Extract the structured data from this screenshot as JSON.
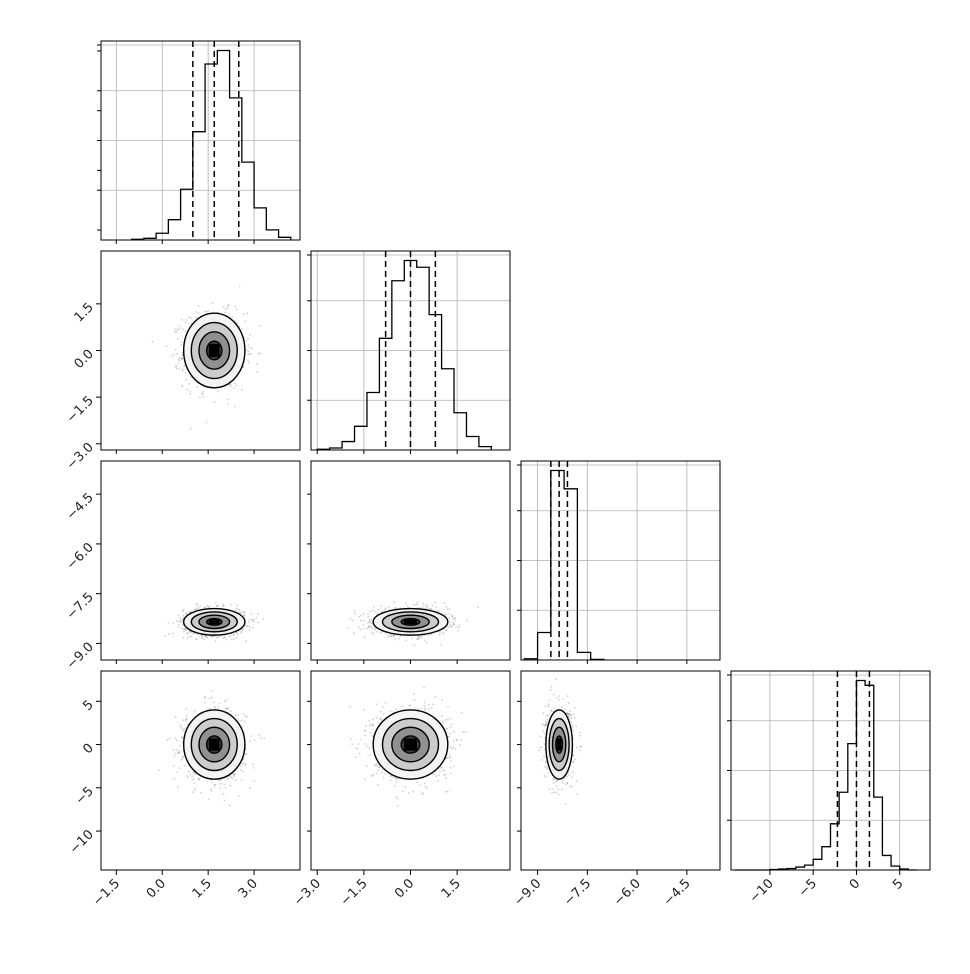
{
  "chart_data": {
    "type": "corner",
    "style": {
      "hist_color": "#000000",
      "point_color": "#7a7a7a",
      "contour_color": "#000000",
      "grid_color": "#b0b0b0",
      "grid": true
    },
    "variables": [
      {
        "range": [
          -2.0,
          4.5
        ],
        "ticks": [
          "-1.5",
          "0.0",
          "1.5",
          "3.0"
        ],
        "tick_values": [
          -1.5,
          0.0,
          1.5,
          3.0
        ],
        "center": 1.7,
        "sd": 0.5
      },
      {
        "range": [
          -3.2,
          3.2
        ],
        "ticks": [
          "-3.0",
          "-1.5",
          "0.0",
          "1.5"
        ],
        "tick_values": [
          -3.0,
          -1.5,
          0.0,
          1.5
        ],
        "center": 0.0,
        "sd": 0.6
      },
      {
        "range": [
          -9.5,
          -3.5
        ],
        "ticks": [
          "-9.0",
          "-7.5",
          "-6.0",
          "-4.5"
        ],
        "tick_values": [
          -9.0,
          -7.5,
          -6.0,
          -4.5
        ],
        "center": -8.35,
        "sd": 0.2
      },
      {
        "range": [
          -14.5,
          8.5
        ],
        "ticks": [
          "-10",
          "-5",
          "0",
          "5"
        ],
        "tick_values": [
          -10,
          -5,
          0,
          5
        ],
        "center": 0.0,
        "sd": 2.0
      }
    ],
    "histograms": [
      {
        "var": 0,
        "bins": [
          -1.0,
          -0.6,
          -0.2,
          0.2,
          0.6,
          1.0,
          1.4,
          1.8,
          2.2,
          2.6,
          3.0,
          3.4,
          3.8,
          4.2
        ],
        "counts": [
          2,
          5,
          20,
          60,
          150,
          320,
          520,
          560,
          420,
          230,
          95,
          30,
          8,
          2
        ],
        "quantiles": [
          1.0,
          1.7,
          2.5
        ]
      },
      {
        "var": 1,
        "bins": [
          -3.0,
          -2.6,
          -2.2,
          -1.8,
          -1.4,
          -1.0,
          -0.6,
          -0.2,
          0.2,
          0.6,
          1.0,
          1.4,
          1.8,
          2.2,
          2.6
        ],
        "counts": [
          2,
          6,
          25,
          70,
          170,
          330,
          500,
          560,
          540,
          400,
          240,
          110,
          40,
          10,
          2
        ],
        "quantiles": [
          -0.8,
          0.0,
          0.8
        ]
      },
      {
        "var": 2,
        "bins": [
          -9.4,
          -9.0,
          -8.6,
          -8.2,
          -7.8,
          -7.4,
          -7.0
        ],
        "counts": [
          4,
          90,
          620,
          560,
          25,
          2
        ],
        "quantiles": [
          -8.6,
          -8.35,
          -8.1
        ]
      },
      {
        "var": 3,
        "bins": [
          -14.0,
          -13.0,
          -12.0,
          -11.0,
          -10.0,
          -9.0,
          -8.0,
          -7.0,
          -6.0,
          -5.0,
          -4.0,
          -3.0,
          -2.0,
          -1.0,
          0.0,
          1.0,
          2.0,
          3.0,
          4.0,
          5.0,
          6.0,
          7.0
        ],
        "counts": [
          0,
          0,
          0,
          0,
          1,
          2,
          3,
          6,
          10,
          22,
          48,
          95,
          160,
          260,
          390,
          380,
          150,
          30,
          8,
          2,
          0
        ],
        "quantiles": [
          -2.2,
          0.0,
          1.5
        ]
      }
    ],
    "pairs": [
      {
        "row": 1,
        "col": 0,
        "rho": 0.0
      },
      {
        "row": 2,
        "col": 0,
        "rho": 0.0
      },
      {
        "row": 2,
        "col": 1,
        "rho": 0.0
      },
      {
        "row": 3,
        "col": 0,
        "rho": 0.0
      },
      {
        "row": 3,
        "col": 1,
        "rho": 0.0
      },
      {
        "row": 3,
        "col": 2,
        "rho": 0.0
      }
    ]
  }
}
